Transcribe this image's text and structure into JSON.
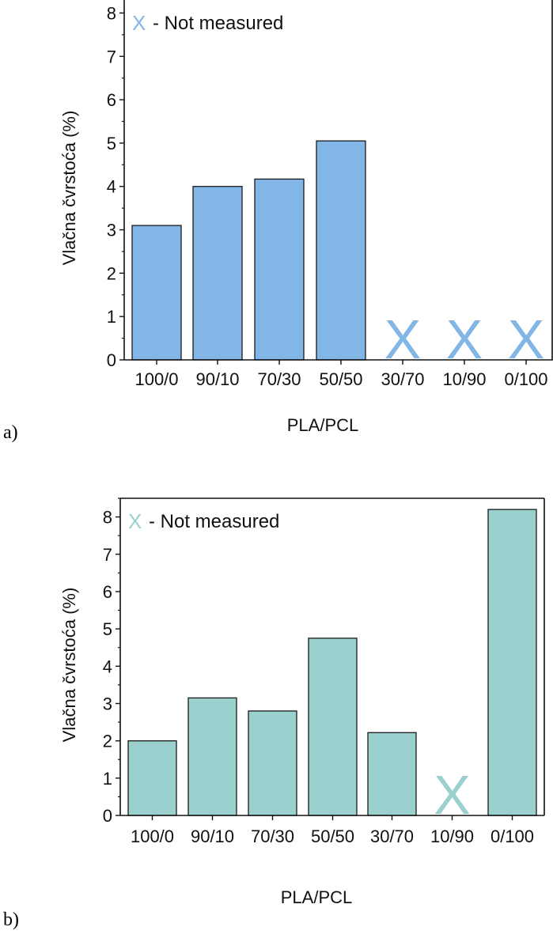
{
  "chart_data": [
    {
      "type": "bar",
      "panel_label": "a)",
      "categories": [
        "100/0",
        "90/10",
        "70/30",
        "50/50",
        "30/70",
        "10/90",
        "0/100"
      ],
      "values": [
        3.1,
        4.0,
        4.17,
        5.05,
        null,
        null,
        null
      ],
      "not_measured_mark": "X",
      "legend_text": "- Not measured",
      "xlabel": "PLA/PCL",
      "ylabel": "Vlačna čvrstoća (%)",
      "ylim": [
        0,
        8.3
      ],
      "yticks": [
        "0",
        "1",
        "2",
        "3",
        "4",
        "5",
        "6",
        "7",
        "8"
      ],
      "bar_color": "#82b6e6",
      "mark_color": "#82b6e6",
      "legend_position": "top-left",
      "grid": false
    },
    {
      "type": "bar",
      "panel_label": "b)",
      "categories": [
        "100/0",
        "90/10",
        "70/30",
        "50/50",
        "30/70",
        "10/90",
        "0/100"
      ],
      "values": [
        2.0,
        3.15,
        2.8,
        4.75,
        2.22,
        null,
        8.2
      ],
      "not_measured_mark": "X",
      "legend_text": "- Not measured",
      "xlabel": "PLA/PCL",
      "ylabel": "Vlačna čvrstoća (%)",
      "ylim": [
        0,
        8.5
      ],
      "yticks": [
        "0",
        "1",
        "2",
        "3",
        "4",
        "5",
        "6",
        "7",
        "8"
      ],
      "bar_color": "#9ad1ce",
      "mark_color": "#9ad1ce",
      "legend_position": "top-left",
      "grid": false
    }
  ]
}
